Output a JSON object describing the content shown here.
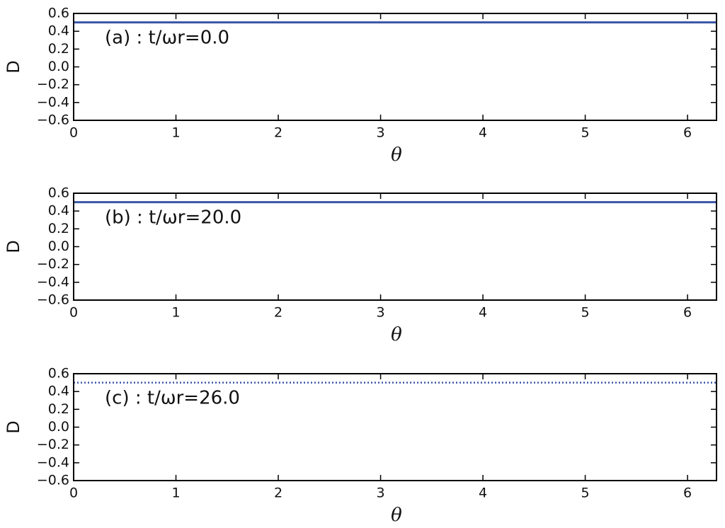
{
  "chart_data": [
    {
      "type": "line",
      "annotation": "(a) : t/ωr=0.0",
      "xlabel": "θ",
      "ylabel": "D",
      "x": [
        0,
        6.283
      ],
      "values": [
        0.5,
        0.5
      ],
      "color": "#3a55a4",
      "linestyle": "solid",
      "xlim": [
        0,
        6.283
      ],
      "xticks": [
        0,
        1,
        2,
        3,
        4,
        5,
        6
      ],
      "ylim": [
        -0.6,
        0.6
      ],
      "yticks": [
        0.6,
        0.4,
        0.2,
        {
          "value": 0,
          "label": "0.0"
        },
        {
          "value": -0.2,
          "label": "−0.2"
        },
        {
          "value": -0.4,
          "label": "−0.4"
        },
        {
          "value": -0.6,
          "label": "−0.6"
        }
      ]
    },
    {
      "type": "line",
      "annotation": "(b) : t/ωr=20.0",
      "xlabel": "θ",
      "ylabel": "D",
      "x": [
        0,
        6.283
      ],
      "values": [
        0.5,
        0.5
      ],
      "color": "#3a55a4",
      "linestyle": "solid",
      "xlim": [
        0,
        6.283
      ],
      "xticks": [
        0,
        1,
        2,
        3,
        4,
        5,
        6
      ],
      "ylim": [
        -0.6,
        0.6
      ],
      "yticks": [
        0.6,
        0.4,
        0.2,
        {
          "value": 0,
          "label": "0.0"
        },
        {
          "value": -0.2,
          "label": "−0.2"
        },
        {
          "value": -0.4,
          "label": "−0.4"
        },
        {
          "value": -0.6,
          "label": "−0.6"
        }
      ]
    },
    {
      "type": "line",
      "annotation": "(c) : t/ωr=26.0",
      "xlabel": "θ",
      "ylabel": "D",
      "x": [
        0,
        6.283
      ],
      "values": [
        0.5,
        0.5
      ],
      "color": "#3a55a4",
      "linestyle": "dotted",
      "xlim": [
        0,
        6.283
      ],
      "xticks": [
        0,
        1,
        2,
        3,
        4,
        5,
        6
      ],
      "ylim": [
        -0.6,
        0.6
      ],
      "yticks": [
        0.6,
        0.4,
        0.2,
        {
          "value": 0,
          "label": "0.0"
        },
        {
          "value": -0.2,
          "label": "−0.2"
        },
        {
          "value": -0.4,
          "label": "−0.4"
        },
        {
          "value": -0.6,
          "label": "−0.6"
        }
      ]
    }
  ]
}
